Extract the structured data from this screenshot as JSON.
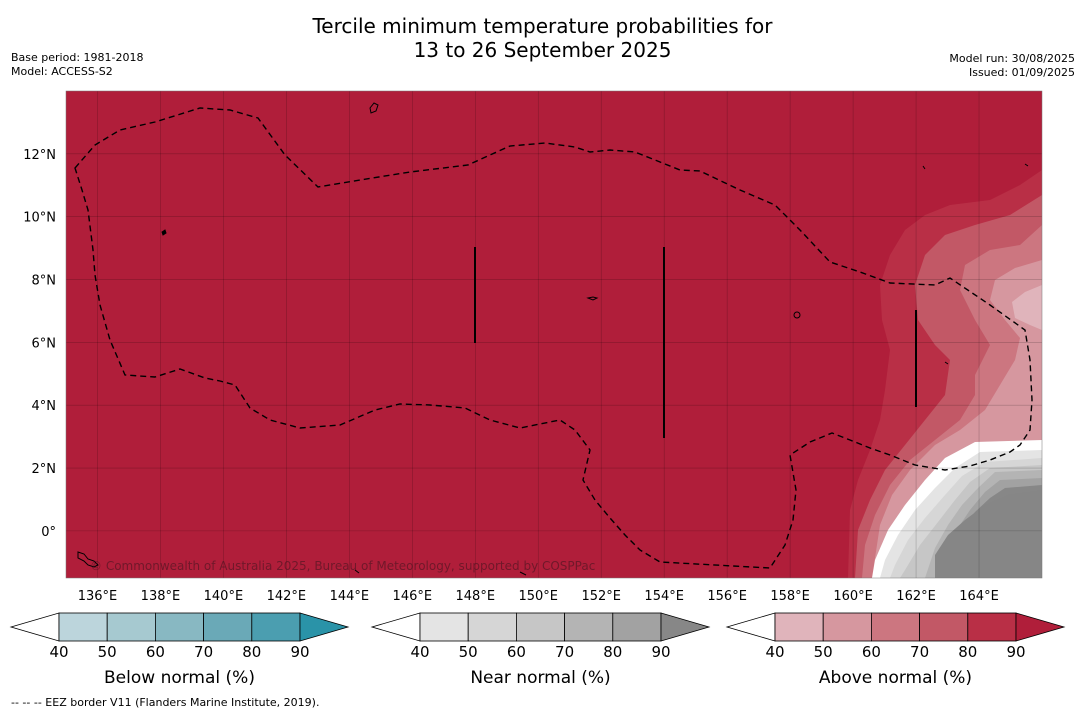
{
  "title": {
    "line1": "Tercile minimum temperature probabilities for",
    "line2": "13 to 26 September 2025"
  },
  "meta_left": {
    "base_period": "Base period: 1981-2018",
    "model": "Model: ACCESS-S2"
  },
  "meta_right": {
    "model_run": "Model run: 30/08/2025",
    "issued": "Issued: 01/09/2025"
  },
  "map": {
    "lon_range": [
      135,
      166
    ],
    "lat_range": [
      -1.5,
      14
    ],
    "lon_ticks": [
      "136°E",
      "138°E",
      "140°E",
      "142°E",
      "144°E",
      "146°E",
      "148°E",
      "150°E",
      "152°E",
      "154°E",
      "156°E",
      "158°E",
      "160°E",
      "162°E",
      "164°E"
    ],
    "lat_ticks": [
      "12°N",
      "10°N",
      "8°N",
      "6°N",
      "4°N",
      "2°N",
      "0°"
    ],
    "dominant_category": "Above normal 90%",
    "copyright": "© Commonwealth of Australia 2025, Bureau of Meteorology, supported by COSPPac"
  },
  "colorbars": [
    {
      "title": "Below normal (%)",
      "ticks": [
        "40",
        "50",
        "60",
        "70",
        "80",
        "90"
      ],
      "colors": [
        "#bcd5dc",
        "#a6c9d0",
        "#88b8c2",
        "#6aa9b7",
        "#4b9eb0",
        "#2a93a8"
      ]
    },
    {
      "title": "Near normal (%)",
      "ticks": [
        "40",
        "50",
        "60",
        "70",
        "80",
        "90"
      ],
      "colors": [
        "#e4e4e4",
        "#d6d6d6",
        "#c6c6c6",
        "#b4b4b4",
        "#a2a2a2",
        "#878787"
      ]
    },
    {
      "title": "Above normal (%)",
      "ticks": [
        "40",
        "50",
        "60",
        "70",
        "80",
        "90"
      ],
      "colors": [
        "#e0b4bb",
        "#d6979f",
        "#cc7680",
        "#c25866",
        "#b92f46",
        "#b01e3a"
      ]
    }
  ],
  "footer": "--  --  -- EEZ border V11 (Flanders Marine Institute, 2019)."
}
